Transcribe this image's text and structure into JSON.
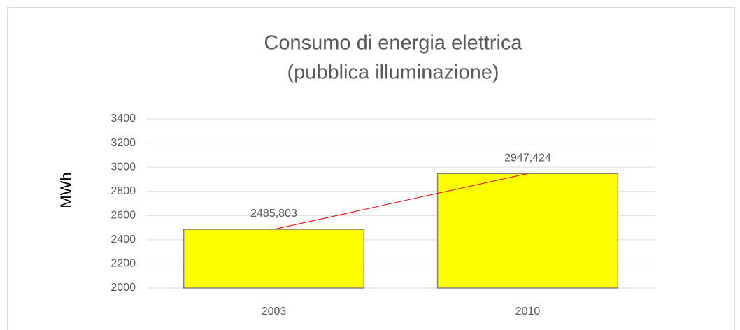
{
  "chart_data": {
    "type": "bar",
    "title": [
      "Consumo di energia elettrica",
      "(pubblica illuminazione)"
    ],
    "ylabel": "MWh",
    "categories": [
      "2003",
      "2010"
    ],
    "values": [
      2485.803,
      2947.424
    ],
    "value_labels": [
      "2485,803",
      "2947,424"
    ],
    "color": "#ffff00",
    "trendline_color": "#ff0000",
    "ylim": [
      2000,
      3400
    ],
    "yticks": [
      2000,
      2200,
      2400,
      2600,
      2800,
      3000,
      3200,
      3400
    ],
    "grid": true
  }
}
